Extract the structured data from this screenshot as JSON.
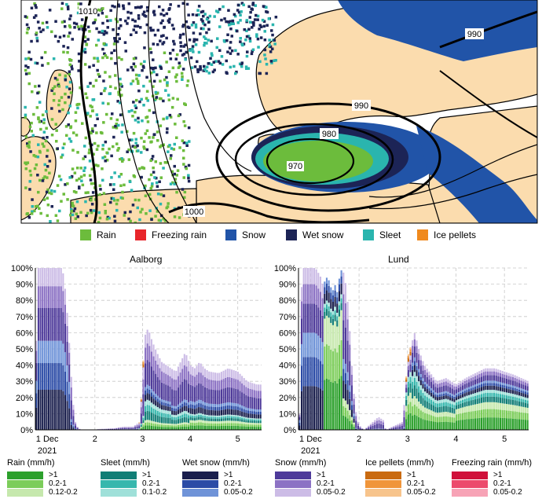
{
  "map": {
    "isobar_labels": [
      "1010",
      "990",
      "990",
      "980",
      "970",
      "1000"
    ]
  },
  "legend": [
    {
      "label": "Rain",
      "color": "#6cbc3c",
      "icon": "rain-swatch"
    },
    {
      "label": "Freezing rain",
      "color": "#e8262b",
      "icon": "freezing-rain-swatch"
    },
    {
      "label": "Snow",
      "color": "#2154a8",
      "icon": "snow-swatch"
    },
    {
      "label": "Wet snow",
      "color": "#1c2456",
      "icon": "wet-snow-swatch"
    },
    {
      "label": "Sleet",
      "color": "#2ab5ae",
      "icon": "sleet-swatch"
    },
    {
      "label": "Ice pellets",
      "color": "#f08a1e",
      "icon": "ice-pellets-swatch"
    }
  ],
  "chart_data": [
    {
      "type": "bar",
      "title": "Aalborg",
      "stacked": true,
      "ylim": [
        0,
        100
      ],
      "y_tick_labels": [
        "0%",
        "10%",
        "20%",
        "30%",
        "40%",
        "50%",
        "60%",
        "70%",
        "80%",
        "90%",
        "100%"
      ],
      "x_tick_labels": [
        "1 Dec",
        "2",
        "3",
        "4",
        "5"
      ],
      "x_sublabel": "2021",
      "x_range_days": [
        0.75,
        5.5
      ],
      "grid": true,
      "total_percent": [
        [
          0.78,
          55
        ],
        [
          0.8,
          100
        ],
        [
          0.88,
          100
        ],
        [
          0.95,
          100
        ],
        [
          1.05,
          100
        ],
        [
          1.15,
          100
        ],
        [
          1.25,
          100
        ],
        [
          1.3,
          100
        ],
        [
          1.35,
          95
        ],
        [
          1.4,
          80
        ],
        [
          1.45,
          60
        ],
        [
          1.5,
          35
        ],
        [
          1.55,
          15
        ],
        [
          1.6,
          3
        ],
        [
          1.7,
          0
        ],
        [
          2.4,
          1
        ],
        [
          2.6,
          2
        ],
        [
          2.8,
          2
        ],
        [
          2.95,
          5
        ],
        [
          3.0,
          35
        ],
        [
          3.05,
          58
        ],
        [
          3.1,
          62
        ],
        [
          3.15,
          60
        ],
        [
          3.2,
          55
        ],
        [
          3.3,
          48
        ],
        [
          3.4,
          42
        ],
        [
          3.5,
          40
        ],
        [
          3.6,
          38
        ],
        [
          3.7,
          36
        ],
        [
          3.8,
          42
        ],
        [
          3.9,
          48
        ],
        [
          4.0,
          40
        ],
        [
          4.1,
          38
        ],
        [
          4.2,
          42
        ],
        [
          4.3,
          38
        ],
        [
          4.4,
          36
        ],
        [
          4.6,
          35
        ],
        [
          4.8,
          38
        ],
        [
          5.0,
          36
        ],
        [
          5.2,
          30
        ],
        [
          5.4,
          28
        ],
        [
          5.5,
          28
        ]
      ],
      "type_mix": [
        [
          0.75,
          {
            "wet_snow": 0.55,
            "snow": 0.45
          }
        ],
        [
          1.5,
          {
            "wet_snow": 0.2,
            "snow": 0.8
          }
        ],
        [
          2.9,
          {
            "snow": 0.7,
            "sleet": 0.1,
            "rain": 0.1,
            "ice_pellets": 0.1
          }
        ],
        [
          3.05,
          {
            "snow": 0.55,
            "wet_snow": 0.15,
            "sleet": 0.2,
            "rain": 0.1
          }
        ],
        [
          3.6,
          {
            "snow": 0.6,
            "wet_snow": 0.15,
            "sleet": 0.15,
            "rain": 0.1
          }
        ],
        [
          4.0,
          {
            "snow": 0.55,
            "wet_snow": 0.2,
            "sleet": 0.1,
            "rain": 0.15
          }
        ],
        [
          5.5,
          {
            "snow": 0.5,
            "wet_snow": 0.25,
            "sleet": 0.1,
            "rain": 0.15
          }
        ]
      ]
    },
    {
      "type": "bar",
      "title": "Lund",
      "stacked": true,
      "ylim": [
        0,
        100
      ],
      "y_tick_labels": [
        "0%",
        "10%",
        "20%",
        "30%",
        "40%",
        "50%",
        "60%",
        "70%",
        "80%",
        "90%",
        "100%"
      ],
      "x_tick_labels": [
        "1 Dec",
        "2",
        "3",
        "4",
        "5"
      ],
      "x_sublabel": "2021",
      "x_range_days": [
        0.75,
        5.5
      ],
      "grid": true,
      "total_percent": [
        [
          0.78,
          10
        ],
        [
          0.82,
          100
        ],
        [
          0.9,
          100
        ],
        [
          1.0,
          100
        ],
        [
          1.1,
          100
        ],
        [
          1.2,
          95
        ],
        [
          1.25,
          90
        ],
        [
          1.3,
          92
        ],
        [
          1.35,
          95
        ],
        [
          1.4,
          90
        ],
        [
          1.45,
          85
        ],
        [
          1.5,
          90
        ],
        [
          1.55,
          85
        ],
        [
          1.6,
          95
        ],
        [
          1.65,
          100
        ],
        [
          1.7,
          95
        ],
        [
          1.75,
          85
        ],
        [
          1.8,
          65
        ],
        [
          1.85,
          40
        ],
        [
          1.9,
          20
        ],
        [
          1.95,
          8
        ],
        [
          2.0,
          3
        ],
        [
          2.1,
          0
        ],
        [
          2.4,
          8
        ],
        [
          2.5,
          6
        ],
        [
          2.55,
          0
        ],
        [
          2.9,
          5
        ],
        [
          2.95,
          22
        ],
        [
          3.0,
          45
        ],
        [
          3.05,
          50
        ],
        [
          3.1,
          55
        ],
        [
          3.15,
          60
        ],
        [
          3.25,
          48
        ],
        [
          3.35,
          40
        ],
        [
          3.45,
          36
        ],
        [
          3.6,
          30
        ],
        [
          3.8,
          32
        ],
        [
          4.0,
          28
        ],
        [
          4.2,
          32
        ],
        [
          4.4,
          35
        ],
        [
          4.6,
          38
        ],
        [
          4.8,
          38
        ],
        [
          5.0,
          36
        ],
        [
          5.2,
          34
        ],
        [
          5.5,
          30
        ]
      ],
      "type_mix": [
        [
          0.75,
          {
            "wet_snow": 0.6,
            "snow": 0.4
          }
        ],
        [
          1.25,
          {
            "rain": 0.75,
            "sleet": 0.1,
            "wet_snow": 0.15
          }
        ],
        [
          1.65,
          {
            "snow": 0.55,
            "wet_snow": 0.25,
            "rain": 0.2
          }
        ],
        [
          1.9,
          {
            "snow": 0.9,
            "wet_snow": 0.1
          }
        ],
        [
          2.95,
          {
            "rain": 0.45,
            "sleet": 0.25,
            "snow": 0.2,
            "ice_pellets": 0.1
          }
        ],
        [
          3.1,
          {
            "rain": 0.35,
            "sleet": 0.25,
            "snow": 0.25,
            "wet_snow": 0.15
          }
        ],
        [
          4.0,
          {
            "rain": 0.45,
            "sleet": 0.2,
            "snow": 0.2,
            "wet_snow": 0.15
          }
        ],
        [
          5.5,
          {
            "rain": 0.5,
            "sleet": 0.2,
            "snow": 0.2,
            "wet_snow": 0.1
          }
        ]
      ]
    }
  ],
  "intensity_legend": [
    {
      "title": "Rain (mm/h)",
      "levels": [
        ">1",
        "0.2-1",
        "0.12-0.2"
      ],
      "colors": [
        "#2ca02c",
        "#7ccd5a",
        "#c6e8ad"
      ]
    },
    {
      "title": "Sleet (mm/h)",
      "levels": [
        ">1",
        "0.2-1",
        "0.1-0.2"
      ],
      "colors": [
        "#117e76",
        "#36b7ad",
        "#9fe0d9"
      ]
    },
    {
      "title": "Wet snow (mm/h)",
      "levels": [
        ">1",
        "0.2-1",
        "0.05-0.2"
      ],
      "colors": [
        "#1a1f4d",
        "#2b4ba6",
        "#6f93d8"
      ]
    },
    {
      "title": "Snow (mm/h)",
      "levels": [
        ">1",
        "0.2-1",
        "0.05-0.2"
      ],
      "colors": [
        "#4e3a9a",
        "#8c72c4",
        "#ccbce6"
      ]
    },
    {
      "title": "Ice pellets (mm/h)",
      "levels": [
        ">1",
        "0.2-1",
        "0.05-0.2"
      ],
      "colors": [
        "#c96a10",
        "#f0953a",
        "#f7c48c"
      ]
    },
    {
      "title": "Freezing rain (mm/h)",
      "levels": [
        ">1",
        "0.2-1",
        "0.05-0.2"
      ],
      "colors": [
        "#d0103a",
        "#ec4a6c",
        "#f7a3b6"
      ]
    }
  ]
}
